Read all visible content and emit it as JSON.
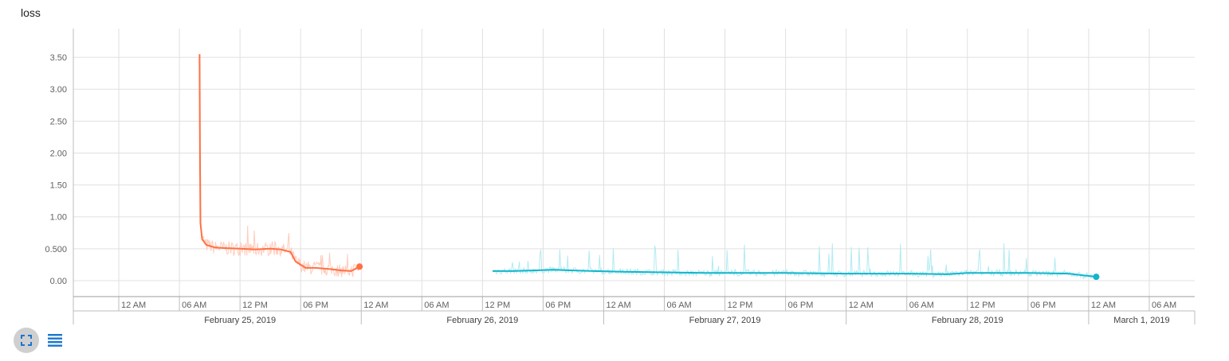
{
  "card": {
    "title": "loss"
  },
  "icons": {
    "expand": "fullscreen-icon",
    "data_table": "list-icon"
  },
  "colors": {
    "run1": "#ff7043",
    "run1_raw": "#ffccbc",
    "run2": "#12b5cb",
    "run2_raw": "#b2ebf2",
    "grid": "#e0e0e0",
    "axis": "#9e9e9e"
  },
  "chart_data": {
    "type": "line",
    "title": "loss",
    "xlabel": "",
    "ylabel": "",
    "x_axis": "relative wall time",
    "xlim": [
      "2019-02-24 19:30",
      "2019-03-01 10:30"
    ],
    "ylim": [
      -0.25,
      3.95
    ],
    "y_ticks": [
      "0.00",
      "0.500",
      "1.00",
      "1.50",
      "2.00",
      "2.50",
      "3.00",
      "3.50"
    ],
    "x_ticks": [
      "12 AM",
      "06 AM",
      "12 PM",
      "06 PM",
      "12 AM",
      "06 AM",
      "12 PM",
      "06 PM",
      "12 AM",
      "06 AM",
      "12 PM",
      "06 PM",
      "12 AM",
      "06 AM",
      "12 PM",
      "06 PM",
      "12 AM",
      "06 AM"
    ],
    "date_labels": [
      "February 25, 2019",
      "February 26, 2019",
      "February 27, 2019",
      "February 28, 2019",
      "March 1, 2019"
    ],
    "grid": true,
    "series": [
      {
        "x": [
          "2019-02-25 08:00",
          "2019-02-25 08:02",
          "2019-02-25 08:05",
          "2019-02-25 08:15",
          "2019-02-25 08:40",
          "2019-02-25 09:30",
          "2019-02-25 10:30",
          "2019-02-25 12:00",
          "2019-02-25 13:30",
          "2019-02-25 15:00",
          "2019-02-25 16:00",
          "2019-02-25 17:00",
          "2019-02-25 17:30",
          "2019-02-25 18:30",
          "2019-02-25 19:30",
          "2019-02-25 21:00",
          "2019-02-25 22:00",
          "2019-02-25 23:00",
          "2019-02-25 23:50"
        ],
        "values": [
          3.55,
          2.0,
          0.9,
          0.65,
          0.56,
          0.52,
          0.51,
          0.5,
          0.49,
          0.5,
          0.49,
          0.45,
          0.3,
          0.2,
          0.2,
          0.18,
          0.16,
          0.15,
          0.22
        ]
      },
      {
        "x": [
          "2019-02-26 13:00",
          "2019-02-26 15:00",
          "2019-02-26 17:00",
          "2019-02-26 19:00",
          "2019-02-26 21:00",
          "2019-02-26 23:00",
          "2019-02-27 02:00",
          "2019-02-27 06:00",
          "2019-02-27 10:00",
          "2019-02-27 12:00",
          "2019-02-27 18:00",
          "2019-02-28 00:00",
          "2019-02-28 06:00",
          "2019-02-28 10:00",
          "2019-02-28 12:00",
          "2019-02-28 18:00",
          "2019-02-28 22:00",
          "2019-03-01 00:45"
        ],
        "values": [
          0.15,
          0.15,
          0.16,
          0.17,
          0.16,
          0.15,
          0.14,
          0.13,
          0.12,
          0.12,
          0.12,
          0.11,
          0.11,
          0.1,
          0.12,
          0.12,
          0.11,
          0.06
        ]
      }
    ]
  }
}
